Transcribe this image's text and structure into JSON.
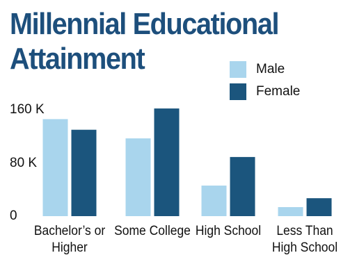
{
  "chart_data": {
    "type": "bar",
    "title": "Millennial Educational Attainment",
    "categories": [
      "Bachelor’s or Higher",
      "Some College",
      "High School",
      "Less Than High School"
    ],
    "series": [
      {
        "name": "Male",
        "color": "#a9d5ed",
        "values": [
          146000,
          117000,
          46000,
          13600
        ]
      },
      {
        "name": "Female",
        "color": "#1b557d",
        "values": [
          130000,
          162000,
          89000,
          27000
        ]
      }
    ],
    "ylim": [
      0,
      160000
    ],
    "yticks": [
      0,
      {
        "value": 80000,
        "label": "80 K"
      },
      {
        "value": 160000,
        "label": "160 K"
      }
    ],
    "grid": false
  }
}
